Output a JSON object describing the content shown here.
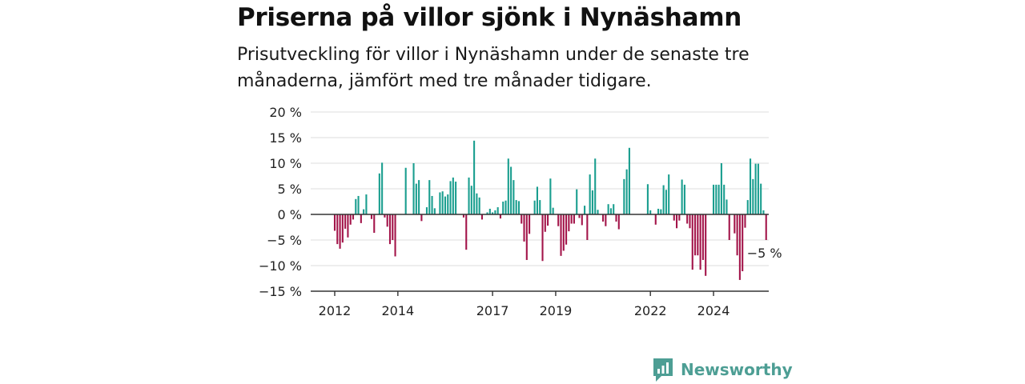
{
  "title": "Priserna på villor sjönk i Nynäshamn",
  "subtitle": "Prisutveckling för villor i Nynäshamn under de senaste tre månaderna, jämfört med tre månader tidigare.",
  "brand": {
    "name": "Newsworthy",
    "color": "#4d9e94",
    "icon": "newsworthy-logo-icon"
  },
  "chart_data": {
    "type": "bar",
    "ylim": [
      -15,
      20
    ],
    "y_ticks": [
      20,
      15,
      10,
      5,
      0,
      -5,
      -10,
      -15
    ],
    "y_tick_labels": [
      "20 %",
      "15 %",
      "10 %",
      "5 %",
      "0 %",
      "−5 %",
      "−10 %",
      "−15 %"
    ],
    "x_tick_labels": [
      {
        "label": "2012",
        "month_index": 0
      },
      {
        "label": "2014",
        "month_index": 24
      },
      {
        "label": "2017",
        "month_index": 60
      },
      {
        "label": "2019",
        "month_index": 84
      },
      {
        "label": "2022",
        "month_index": 120
      },
      {
        "label": "2024",
        "month_index": 144
      }
    ],
    "annotation": "−5 %",
    "positive_color": "#1a9e8f",
    "negative_color": "#a3154a",
    "grid": true,
    "values": [
      -3.2,
      -5.8,
      -6.7,
      -5.5,
      -2.8,
      -4.5,
      -2,
      -1,
      3,
      3.6,
      -1.7,
      1,
      3.9,
      0,
      -0.9,
      -3.6,
      0,
      8,
      10.1,
      -0.6,
      -2.4,
      -5.8,
      -5,
      -8.2,
      0,
      0,
      0,
      9.1,
      0,
      0,
      10,
      6,
      6.7,
      -1.3,
      0,
      1.4,
      6.7,
      3.6,
      1.2,
      0,
      4.3,
      4.5,
      3.5,
      3.9,
      6.5,
      7.2,
      6.4,
      0,
      0,
      -0.6,
      -6.9,
      7.2,
      5.6,
      14.4,
      4.1,
      3.3,
      -1,
      0,
      0.4,
      1.1,
      0.4,
      0.8,
      1.4,
      -0.8,
      2.5,
      2.7,
      10.9,
      9.3,
      6.7,
      2.8,
      2.6,
      -1.8,
      -5.3,
      -8.9,
      -3.8,
      0,
      2.7,
      5.4,
      2.8,
      -9.1,
      -3.4,
      -2.2,
      7,
      1.3,
      0,
      -2.3,
      -8.1,
      -7.1,
      -5.9,
      -3.3,
      -1.8,
      -1.8,
      4.9,
      -0.7,
      -2.1,
      1.7,
      -5,
      7.8,
      4.7,
      10.9,
      0.9,
      0,
      -1.4,
      -2.3,
      2,
      1.2,
      2,
      -1.4,
      -2.9,
      0,
      6.9,
      8.8,
      13,
      0,
      0,
      0,
      0,
      0,
      0,
      5.9,
      0.8,
      0,
      -2,
      1.1,
      1,
      5.7,
      4.8,
      7.8,
      0,
      -1.2,
      -2.7,
      -1.2,
      6.8,
      5.8,
      -1.8,
      -2.7,
      -10.8,
      -8,
      -8,
      -10.8,
      -8.9,
      -12,
      0,
      0,
      5.8,
      5.8,
      5.8,
      10,
      5.8,
      2.9,
      -5,
      0,
      -3.7,
      -8,
      -12.8,
      -11.1,
      -2.6,
      2.8,
      10.9,
      6.9,
      9.9,
      9.9,
      6,
      0.8,
      -5
    ]
  }
}
